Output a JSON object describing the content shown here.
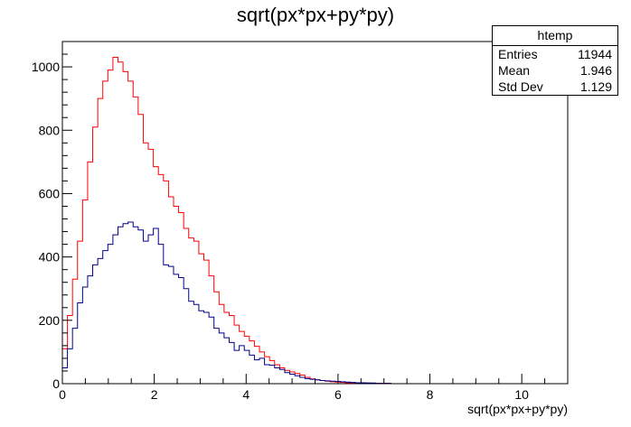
{
  "chart_data": {
    "type": "histogram",
    "title": "sqrt(px*px+py*py)",
    "xlabel": "sqrt(px*px+py*py)",
    "ylabel": "",
    "xlim": [
      0,
      11
    ],
    "ylim": [
      0,
      1080
    ],
    "xticks": [
      0,
      2,
      4,
      6,
      8,
      10
    ],
    "yticks": [
      0,
      200,
      400,
      600,
      800,
      1000
    ],
    "bin_width": 0.11,
    "grid": false,
    "stats_box": {
      "name": "htemp",
      "rows": [
        {
          "label": "Entries",
          "value": "11944"
        },
        {
          "label": "Mean",
          "value": "1.946"
        },
        {
          "label": "Std Dev",
          "value": "1.129"
        }
      ]
    },
    "series": [
      {
        "color": "#ff0000",
        "values": [
          110,
          215,
          330,
          450,
          580,
          700,
          810,
          900,
          955,
          990,
          1030,
          1015,
          985,
          955,
          905,
          850,
          760,
          740,
          685,
          660,
          640,
          590,
          560,
          540,
          490,
          460,
          450,
          410,
          390,
          340,
          290,
          250,
          225,
          215,
          185,
          165,
          150,
          135,
          118,
          100,
          85,
          73,
          60,
          50,
          42,
          37,
          32,
          27,
          20,
          15,
          12,
          10,
          8,
          6,
          5,
          4,
          3,
          3,
          2,
          2,
          2,
          1,
          1,
          1,
          1,
          0,
          0,
          0,
          0,
          0,
          0,
          0,
          0,
          0,
          0,
          0,
          0,
          0,
          0,
          0,
          0,
          0,
          0,
          0,
          0,
          0,
          0,
          0,
          0,
          0,
          0,
          0,
          0,
          0,
          0,
          0,
          0,
          0,
          0,
          0
        ]
      },
      {
        "color": "#00008b",
        "values": [
          50,
          110,
          175,
          255,
          305,
          340,
          375,
          395,
          420,
          440,
          470,
          495,
          505,
          510,
          495,
          485,
          450,
          470,
          490,
          440,
          375,
          370,
          345,
          335,
          300,
          260,
          250,
          230,
          225,
          210,
          175,
          160,
          145,
          130,
          105,
          120,
          105,
          90,
          75,
          80,
          60,
          58,
          50,
          45,
          35,
          30,
          25,
          20,
          16,
          14,
          12,
          10,
          9,
          8,
          7,
          6,
          5,
          4,
          3,
          3,
          2,
          2,
          1,
          1,
          1,
          0,
          0,
          0,
          0,
          0,
          0,
          0,
          0,
          0,
          0,
          0,
          0,
          0,
          0,
          0,
          0,
          0,
          0,
          0,
          0,
          0,
          0,
          0,
          0,
          0,
          0,
          0,
          0,
          0,
          0,
          0,
          0,
          0,
          0,
          0
        ]
      }
    ]
  }
}
